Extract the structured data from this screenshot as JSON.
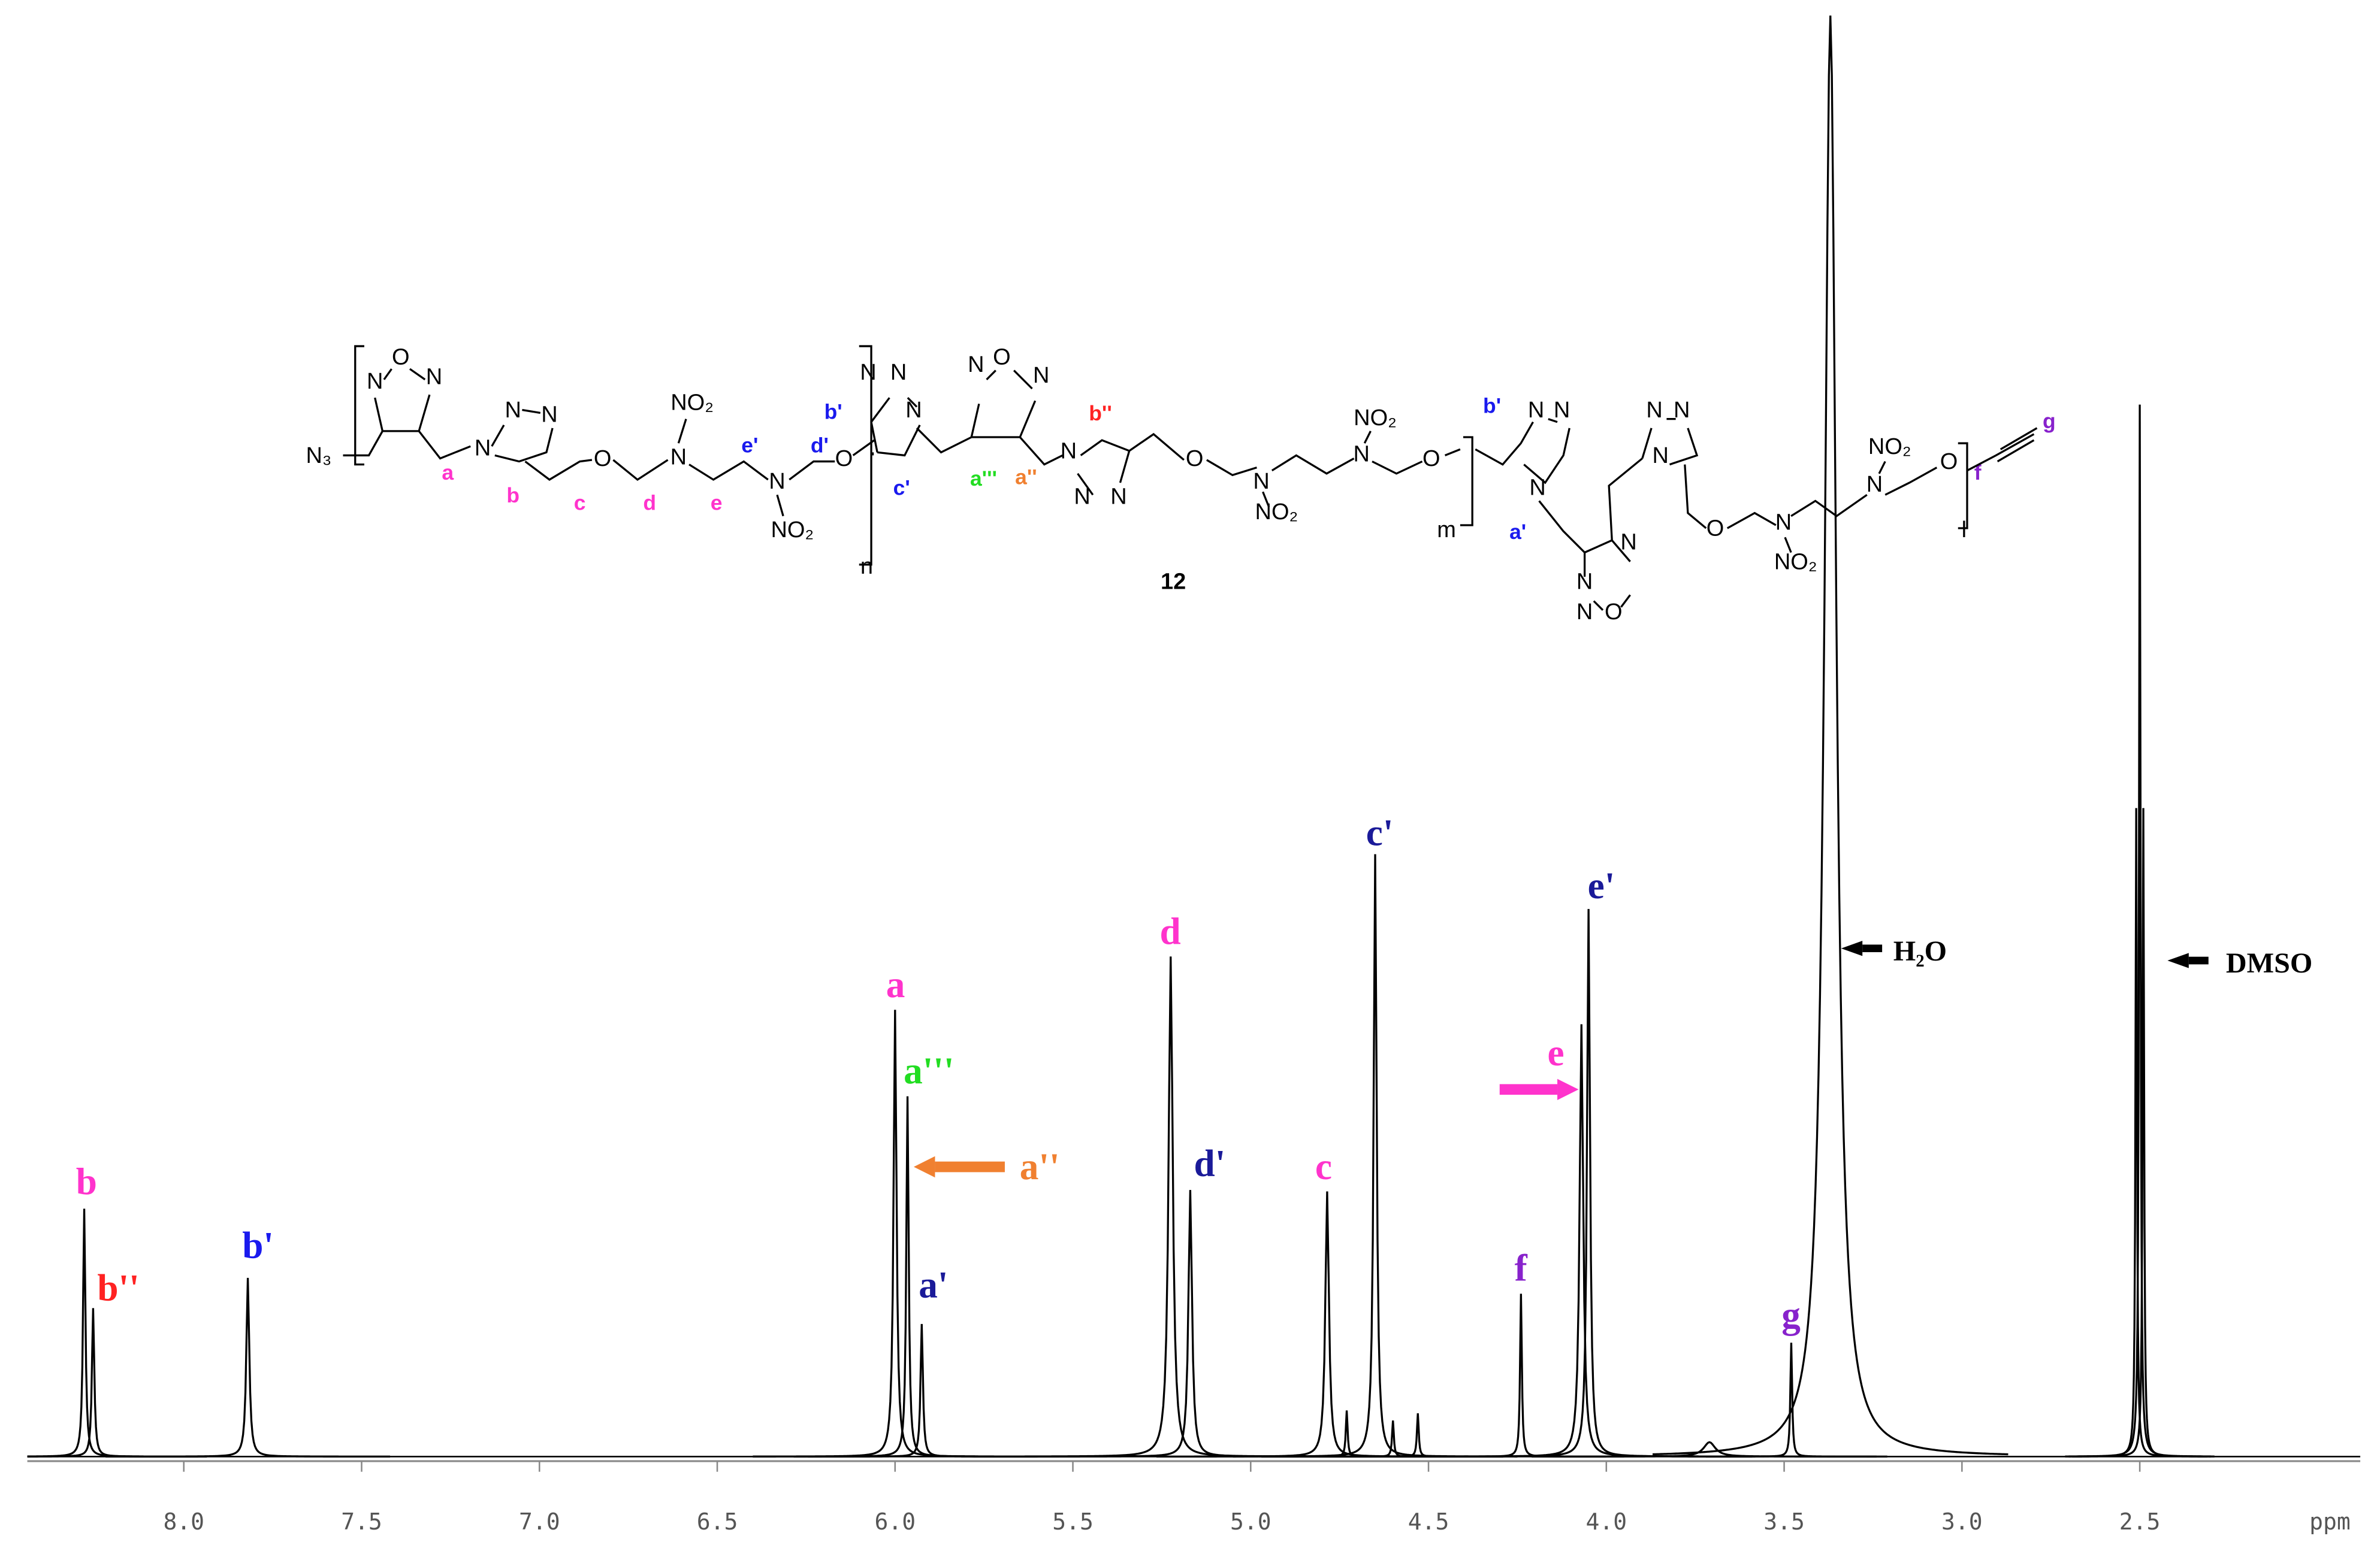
{
  "chart_data": {
    "type": "nmr",
    "x_label": "ppm",
    "xlim": [
      8.44,
      1.88
    ],
    "ylim": [
      0,
      100
    ],
    "xticks": [
      {
        "value": 8.0,
        "label": "8.0"
      },
      7.5,
      {
        "value": 7.0,
        "label": "7.0"
      },
      6.5,
      {
        "value": 6.0,
        "label": "6.0"
      },
      5.5,
      {
        "value": 5.0,
        "label": "5.0"
      },
      4.5,
      {
        "value": 4.0,
        "label": "4.0"
      },
      3.5,
      {
        "value": 3.0,
        "label": "3.0"
      },
      2.5
    ],
    "color": "#000000",
    "peaks": [
      {
        "ppm": 8.28,
        "height": 17.2,
        "width": 0.004
      },
      {
        "ppm": 8.255,
        "height": 10.3,
        "width": 0.004
      },
      {
        "ppm": 7.82,
        "height": 12.4,
        "width": 0.005
      },
      {
        "ppm": 6.0,
        "height": 31,
        "width": 0.005
      },
      {
        "ppm": 5.965,
        "height": 25,
        "width": 0.004
      },
      {
        "ppm": 5.925,
        "height": 9.2,
        "width": 0.004
      },
      {
        "ppm": 5.225,
        "height": 34.7,
        "width": 0.007
      },
      {
        "ppm": 5.17,
        "height": 18.5,
        "width": 0.006
      },
      {
        "ppm": 4.785,
        "height": 18.4,
        "width": 0.006
      },
      {
        "ppm": 4.73,
        "height": 3.2,
        "width": 0.003
      },
      {
        "ppm": 4.65,
        "height": 41.8,
        "width": 0.005
      },
      {
        "ppm": 4.6,
        "height": 2.5,
        "width": 0.003
      },
      {
        "ppm": 4.53,
        "height": 3.0,
        "width": 0.003
      },
      {
        "ppm": 4.24,
        "height": 11.3,
        "width": 0.003
      },
      {
        "ppm": 4.07,
        "height": 30,
        "width": 0.006
      },
      {
        "ppm": 4.05,
        "height": 38,
        "width": 0.005
      },
      {
        "ppm": 3.71,
        "height": 1,
        "width": 0.02
      },
      {
        "ppm": 3.48,
        "height": 7.9,
        "width": 0.003
      },
      {
        "ppm": 3.37,
        "height": 100,
        "width": 0.02
      },
      {
        "ppm": 2.51,
        "height": 45,
        "width": 0.0025
      },
      {
        "ppm": 2.5,
        "height": 73,
        "width": 0.0025
      },
      {
        "ppm": 2.49,
        "height": 45,
        "width": 0.0025
      }
    ],
    "annotations": [
      {
        "text": "b",
        "color": "#ff33cc"
      },
      {
        "text": "b''",
        "color": "#ff2222"
      },
      {
        "text": "b'",
        "color": "#1a1aee"
      },
      {
        "text": "a",
        "color": "#ff33cc"
      },
      {
        "text": "a'''",
        "color": "#22dd22"
      },
      {
        "text": "a''",
        "color": "#f08030"
      },
      {
        "text": "a'",
        "color": "#1a1a99"
      },
      {
        "text": "d",
        "color": "#ff33cc"
      },
      {
        "text": "d'",
        "color": "#1a1a99"
      },
      {
        "text": "c",
        "color": "#ff33cc"
      },
      {
        "text": "c'",
        "color": "#1a1a99"
      },
      {
        "text": "f",
        "color": "#8822cc"
      },
      {
        "text": "e",
        "color": "#ff33cc"
      },
      {
        "text": "e'",
        "color": "#1a1a99"
      },
      {
        "text": "g",
        "color": "#8822cc"
      },
      {
        "text": "H₂O",
        "color": "#000000"
      },
      {
        "text": "DMSO",
        "color": "#000000"
      }
    ]
  },
  "structure": {
    "texts": [
      "N₃",
      "N",
      "O",
      "N",
      "N",
      "N",
      "N",
      "O",
      "N",
      "NO₂",
      "N",
      "NO₂",
      "O",
      "n",
      "N",
      "N",
      "N",
      "N",
      "O",
      "N",
      "N",
      "N",
      "N",
      "O",
      "N",
      "NO₂",
      "N",
      "NO₂",
      "O",
      "m",
      "N",
      "N",
      "N",
      "N",
      "N",
      "N",
      "O",
      "N",
      "N",
      "N",
      "O",
      "N",
      "NO₂",
      "N",
      "NO₂",
      "O",
      "l",
      "12",
      "a",
      "b",
      "c",
      "d",
      "e",
      "e'",
      "d'",
      "c'",
      "b'",
      "a'''",
      "a''",
      "b''",
      "b'",
      "a'",
      "f",
      "g"
    ]
  }
}
